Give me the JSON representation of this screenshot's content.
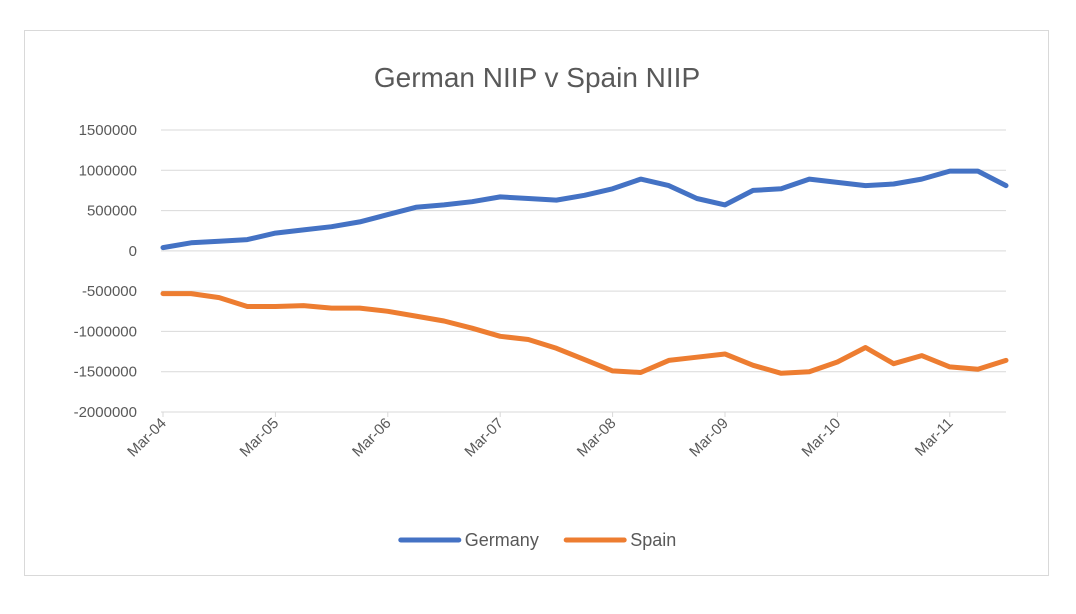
{
  "chart_data": {
    "type": "line",
    "title": "German NIIP v Spain NIIP",
    "xlabel": "",
    "ylabel": "",
    "ylim": [
      -2000000,
      1500000
    ],
    "yticks": [
      1500000,
      1000000,
      500000,
      0,
      -500000,
      -1000000,
      -1500000,
      -2000000
    ],
    "ytick_labels": [
      "1500000",
      "1000000",
      "500000",
      "0",
      "-500000",
      "-1000000",
      "-1500000",
      "-2000000"
    ],
    "x": [
      "Mar-04",
      "Jun-04",
      "Sep-04",
      "Dec-04",
      "Mar-05",
      "Jun-05",
      "Sep-05",
      "Dec-05",
      "Mar-06",
      "Jun-06",
      "Sep-06",
      "Dec-06",
      "Mar-07",
      "Jun-07",
      "Sep-07",
      "Dec-07",
      "Mar-08",
      "Jun-08",
      "Sep-08",
      "Dec-08",
      "Mar-09",
      "Jun-09",
      "Sep-09",
      "Dec-09",
      "Mar-10",
      "Jun-10",
      "Sep-10",
      "Dec-10",
      "Mar-11",
      "Jun-11",
      "Sep-11"
    ],
    "xtick_labels": [
      "Mar-04",
      "Mar-05",
      "Mar-06",
      "Mar-07",
      "Mar-08",
      "Mar-09",
      "Mar-10",
      "Mar-11"
    ],
    "grid": true,
    "legend_position": "bottom",
    "series": [
      {
        "name": "Germany",
        "color": "#4472c4",
        "values": [
          40000,
          100000,
          120000,
          140000,
          220000,
          260000,
          300000,
          360000,
          450000,
          540000,
          570000,
          610000,
          670000,
          650000,
          630000,
          690000,
          770000,
          890000,
          810000,
          650000,
          570000,
          750000,
          770000,
          890000,
          850000,
          810000,
          830000,
          890000,
          990000,
          990000,
          810000
        ]
      },
      {
        "name": "Spain",
        "color": "#ed7d31",
        "values": [
          -530000,
          -530000,
          -580000,
          -690000,
          -690000,
          -680000,
          -710000,
          -710000,
          -750000,
          -810000,
          -870000,
          -960000,
          -1060000,
          -1100000,
          -1210000,
          -1350000,
          -1490000,
          -1510000,
          -1360000,
          -1320000,
          -1280000,
          -1420000,
          -1520000,
          -1500000,
          -1380000,
          -1200000,
          -1400000,
          -1300000,
          -1440000,
          -1470000,
          -1360000
        ]
      }
    ]
  }
}
